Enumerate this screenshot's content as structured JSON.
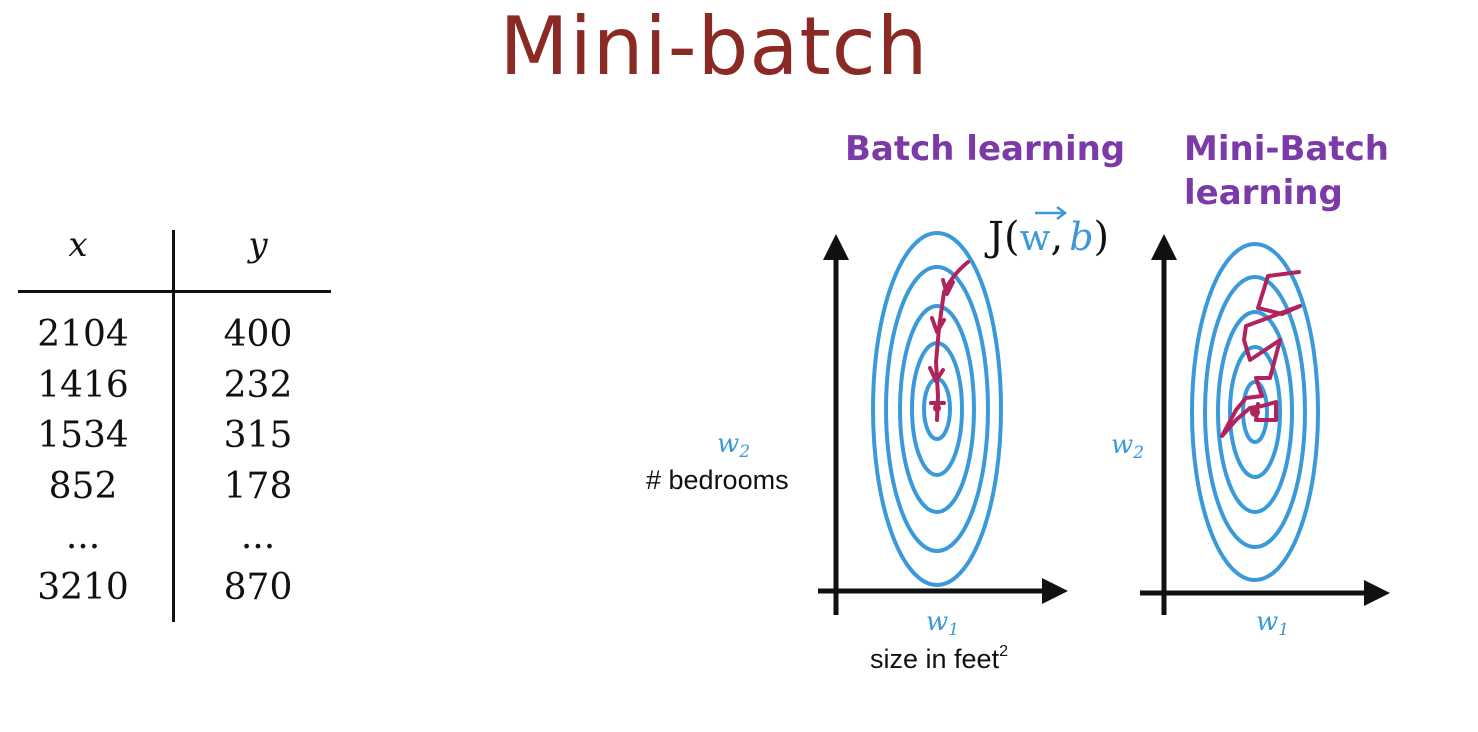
{
  "title": "Mini-batch",
  "table": {
    "headers": [
      "x",
      "y"
    ],
    "x_values": [
      "2104",
      "1416",
      "1534",
      "852",
      "...",
      "3210"
    ],
    "y_values": [
      "400",
      "232",
      "315",
      "178",
      "...",
      "870"
    ]
  },
  "left_plot": {
    "heading": "Batch learning",
    "cost_function": {
      "prefix": "J(",
      "w": "w",
      "comma": ",",
      "b": "b",
      "suffix": ")"
    },
    "y_axis": {
      "symbol": "w",
      "subscript": "2",
      "label": "# bedrooms"
    },
    "x_axis": {
      "symbol": "w",
      "subscript": "1",
      "label": "size in feet",
      "superscript": "2"
    }
  },
  "right_plot": {
    "heading_line1": "Mini-Batch",
    "heading_line2": "learning",
    "y_axis": {
      "symbol": "w",
      "subscript": "2"
    },
    "x_axis": {
      "symbol": "w",
      "subscript": "1"
    }
  },
  "colors": {
    "title": "#8b2a24",
    "contour": "#3a9ad9",
    "path": "#b0245e",
    "handwriting": "#7b3aa8",
    "axis": "#111111"
  },
  "icons": [
    "up-arrow-icon",
    "right-arrow-icon"
  ]
}
